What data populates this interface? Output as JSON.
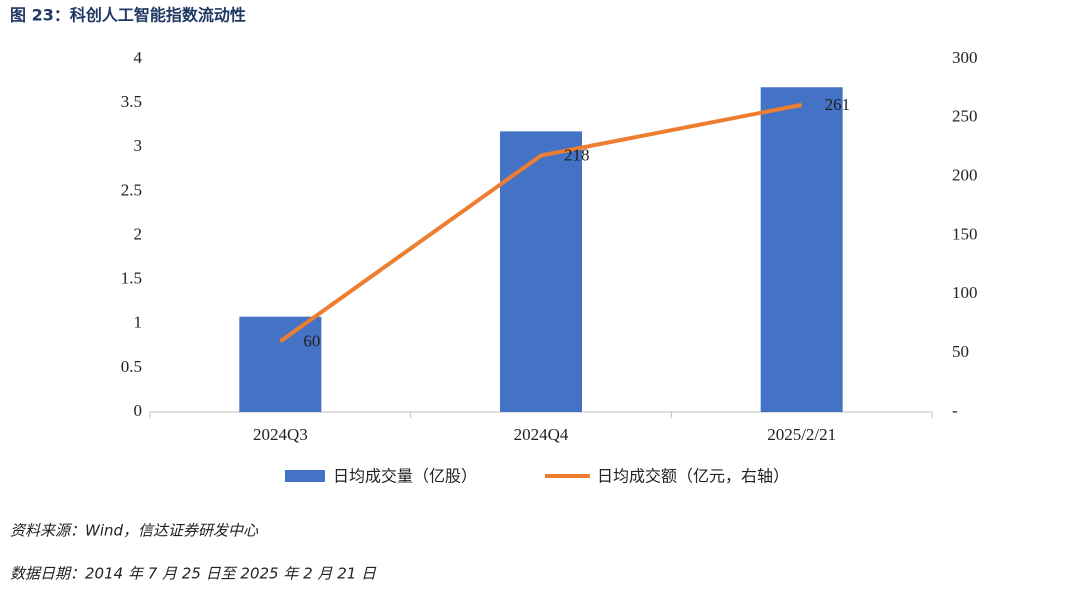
{
  "chart_data": {
    "type": "bar-line",
    "title": "图 23：科创人工智能指数流动性",
    "categories": [
      "2024Q3",
      "2024Q4",
      "2025/2/21"
    ],
    "series": [
      {
        "name": "日均成交量（亿股）",
        "type": "bar",
        "color": "#4472c4",
        "axis": "y",
        "values": [
          1.08,
          3.18,
          3.68
        ]
      },
      {
        "name": "日均成交额（亿元，右轴）",
        "type": "line",
        "color": "#ed7d31",
        "axis": "y2",
        "values": [
          60,
          218,
          261
        ]
      }
    ],
    "ylim": [
      0,
      4
    ],
    "yticks": [
      0,
      0.5,
      1,
      1.5,
      2,
      2.5,
      3,
      3.5,
      4
    ],
    "y2lim": [
      0,
      300
    ],
    "y2ticks": [
      {
        "value": 0,
        "label": "-"
      },
      50,
      100,
      150,
      200,
      250,
      300
    ],
    "legend": "bottom",
    "source": "资料来源：Wind，信达证券研发中心",
    "note": "数据日期：2014 年 7 月 25 日至 2025 年 2 月 21 日"
  }
}
